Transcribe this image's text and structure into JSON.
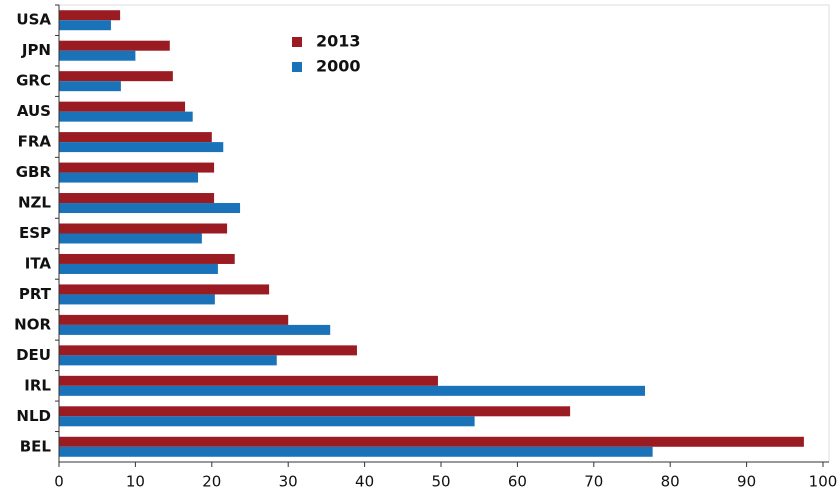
{
  "chart_data": {
    "type": "bar",
    "orientation": "horizontal",
    "categories": [
      "USA",
      "JPN",
      "GRC",
      "AUS",
      "FRA",
      "GBR",
      "NZL",
      "ESP",
      "ITA",
      "PRT",
      "NOR",
      "DEU",
      "IRL",
      "NLD",
      "BEL"
    ],
    "series": [
      {
        "name": "2013",
        "color": "#9b1b22",
        "values": [
          8.0,
          14.5,
          14.9,
          16.5,
          20.0,
          20.3,
          20.3,
          22.0,
          23.0,
          27.5,
          30.0,
          39.0,
          49.6,
          66.9,
          97.5
        ]
      },
      {
        "name": "2000",
        "color": "#1a72b8",
        "values": [
          6.8,
          10.0,
          8.1,
          17.5,
          21.5,
          18.2,
          23.7,
          18.7,
          20.8,
          20.4,
          35.5,
          28.5,
          76.7,
          54.4,
          77.7
        ]
      }
    ],
    "xlim": [
      0,
      100
    ],
    "xticks": [
      0,
      10,
      20,
      30,
      40,
      50,
      60,
      70,
      80,
      90,
      100
    ],
    "grid": false,
    "legend": "upper center"
  }
}
